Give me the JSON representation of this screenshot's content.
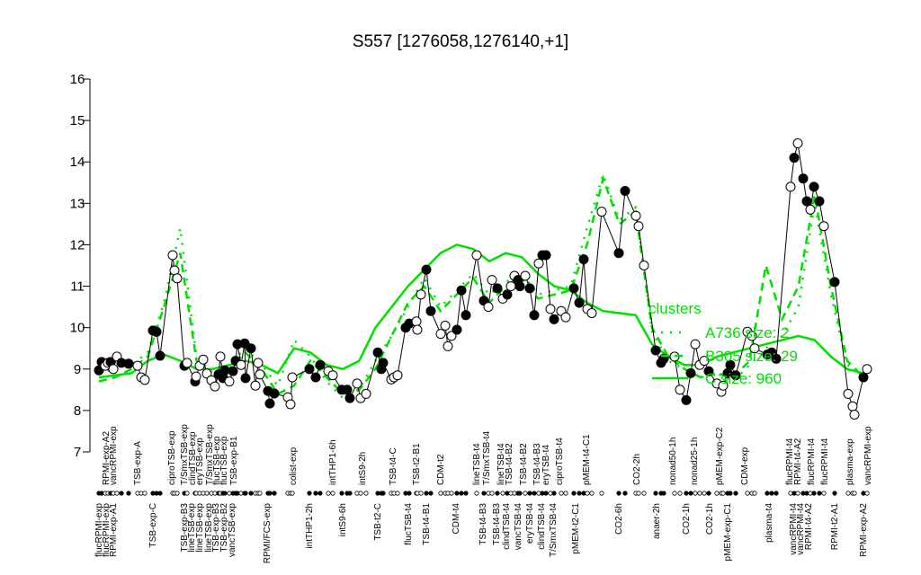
{
  "chart_data": {
    "type": "line",
    "title": "S557 [1276058,1276140,+1]",
    "xlabel": "",
    "ylabel": "",
    "ylim": [
      7,
      16
    ],
    "y_ticks": [
      "7",
      "8",
      "9",
      "10",
      "11",
      "12",
      "13",
      "14",
      "15",
      "16"
    ],
    "grid": false,
    "legend_placement": "right",
    "legend": {
      "title": "clusters",
      "entries": [
        "A736 size: 2",
        "B305 size: 29",
        "C size: 960"
      ]
    },
    "colors": {
      "points": "#000000",
      "clusters": "#00e000"
    },
    "x_labels_top": [
      "RPMI-exp-A2",
      "vancRPMI-exp",
      "TSB-exp-A",
      "ciproTSB-exp",
      "T/SmxTSB-exp",
      "clindTSB-exp",
      "eryTSB-exp",
      "T/SmxTSB-exp",
      "flucTSB-exp",
      "flucTSB-exp",
      "TSB-exp-B1",
      "colist-exp",
      "intTHP1-6h",
      "intS9-2h",
      "TSB-t4-C",
      "TSB-t2-B1",
      "CDM-t2",
      "lineTSB-t4",
      "T/SmxTSB-t4",
      "lineTSB-t4",
      "TSB-t4-B2",
      "TSB-t4-B2",
      "TSB-t4-B3",
      "eryTSB-t4",
      "ciproTSB-t4",
      "pMEM-t4-C1",
      "CO2-2h",
      "nonad50-1h",
      "nonad25-1h",
      "pMEM-exp-C2",
      "CDM-exp",
      "flucRPMI-t4",
      "RPMI-t4-A2",
      "flucRPMI-t4",
      "flucRPMI-t4",
      "plasma-exp",
      "vancRPMI-exp"
    ],
    "x_labels_bottom": [
      "flucRPMI-exp",
      "flucRPMI-exp",
      "RPMI-exp-A1",
      "TSB-exp-C",
      "TSB-exp-B3",
      "lineTSB-exp",
      "lineTSB-exp",
      "lineTSB-exp",
      "TSB-exp-B3",
      "TSB-exp-B2",
      "vancTSB-exp",
      "RPMI/FCS-exp",
      "intTHP1-2h",
      "intS9-6h",
      "TSB-t2-C",
      "flucTSB-t4",
      "TSB-t4-B1",
      "CDM-t4",
      "TSB-t4-B3",
      "TSB-t4-B3",
      "clindTSB-t4",
      "vancTSB-t4",
      "eryTSB-t4",
      "clindTSB-t4",
      "T/SmxTSB-t4",
      "pMEM-t2-C1",
      "CO2-6h",
      "anaer-2h",
      "CO2-1h",
      "CO2-1h",
      "pMEM-exp-C1",
      "plasma-t4",
      "vancRPMI-t4",
      "vancRPMI-t4",
      "RPMI-t4-A2",
      "RPMI-t2-A1",
      "RPMI-exp-A2"
    ],
    "points": {
      "values": [
        8.97,
        9.17,
        9.08,
        9.15,
        9.17,
        9.0,
        9.3,
        9.15,
        9.13,
        9.08,
        8.8,
        8.74,
        9.93,
        9.9,
        9.32,
        11.75,
        11.38,
        11.19,
        9.08,
        9.15,
        8.7,
        8.82,
        9.08,
        9.23,
        8.89,
        8.73,
        8.58,
        8.87,
        9.3,
        8.78,
        8.97,
        8.7,
        8.95,
        9.2,
        9.6,
        9.1,
        9.62,
        8.78,
        9.5,
        8.6,
        9.15,
        8.87,
        8.47,
        8.17,
        8.41,
        8.32,
        8.15,
        8.8,
        9.0,
        8.8,
        9.1,
        8.95,
        8.85,
        8.5,
        8.5,
        8.3,
        8.65,
        8.3,
        8.4,
        9.4,
        9.0,
        9.15,
        8.75,
        8.8,
        8.85,
        10.0,
        10.1,
        10.15,
        9.95,
        10.8,
        11.4,
        10.4,
        9.85,
        10.05,
        9.55,
        9.8,
        9.95,
        10.9,
        10.3,
        11.75,
        10.65,
        10.5,
        11.15,
        10.95,
        10.7,
        10.8,
        11.0,
        11.25,
        11.15,
        11.0,
        11.25,
        10.95,
        10.3,
        11.55,
        11.75,
        11.75,
        10.45,
        10.2,
        10.4,
        10.25,
        10.95,
        10.6,
        11.65,
        10.45,
        10.35,
        12.8,
        11.8,
        13.3,
        12.7,
        12.45,
        11.5,
        9.45,
        9.15,
        9.25,
        9.3,
        8.5,
        8.25,
        8.9,
        9.6,
        9.1,
        9.2,
        8.95,
        8.65,
        8.45,
        8.6,
        8.9,
        9.1,
        8.85,
        9.9,
        9.8,
        9.5,
        9.35,
        9.4,
        9.25,
        13.4,
        14.1,
        14.45,
        13.6,
        13.05,
        12.85,
        13.4,
        13.05,
        12.45,
        11.1,
        8.4,
        8.1,
        7.9,
        8.8,
        9.0
      ],
      "filled": [
        1,
        1,
        0,
        0,
        1,
        0,
        0,
        1,
        1,
        0,
        0,
        0,
        1,
        1,
        1,
        0,
        0,
        0,
        1,
        0,
        1,
        0,
        0,
        0,
        0,
        0,
        0,
        1,
        0,
        1,
        1,
        0,
        1,
        1,
        1,
        0,
        1,
        1,
        1,
        0,
        0,
        0,
        1,
        1,
        1,
        0,
        0,
        0,
        1,
        1,
        1,
        0,
        0,
        1,
        1,
        1,
        0,
        0,
        0,
        1,
        1,
        1,
        0,
        0,
        0,
        1,
        1,
        0,
        0,
        0,
        1,
        1,
        0,
        0,
        0,
        0,
        1,
        1,
        1,
        0,
        1,
        0,
        0,
        1,
        0,
        1,
        0,
        0,
        1,
        1,
        0,
        1,
        1,
        0,
        1,
        1,
        0,
        1,
        0,
        0,
        1,
        1,
        1,
        0,
        0,
        0,
        1,
        1,
        0,
        0,
        0,
        1,
        1,
        1,
        0,
        0,
        1,
        1,
        0,
        0,
        0,
        1,
        0,
        0,
        0,
        1,
        1,
        1,
        0,
        0,
        0,
        1,
        1,
        1,
        0,
        1,
        0,
        1,
        1,
        0,
        1,
        1,
        0,
        1,
        0,
        0,
        0,
        1,
        0
      ]
    },
    "series": [
      {
        "name": "A736 size: 2",
        "style": "dotted",
        "values": [
          8.9,
          9.0,
          9.1,
          9.4,
          10.6,
          12.4,
          9.3,
          8.9,
          9.1,
          9.5,
          9.1,
          8.6,
          9.7,
          9.3,
          8.7,
          8.3,
          8.5,
          9.2,
          9.8,
          10.5,
          11.2,
          10.5,
          10.9,
          11.3,
          10.8,
          11.1,
          11.3,
          10.8,
          10.9,
          11.0,
          12.4,
          13.7,
          12.6,
          12.9,
          9.9,
          9.2,
          9.0,
          8.8,
          8.9,
          8.7,
          9.1,
          9.5,
          9.8,
          10.5,
          13.0,
          10.8,
          9.1,
          8.9
        ]
      },
      {
        "name": "B305 size: 29",
        "style": "dashed",
        "values": [
          8.7,
          8.8,
          9.0,
          9.3,
          10.5,
          11.8,
          9.2,
          8.8,
          9.0,
          9.4,
          9.0,
          8.4,
          8.6,
          9.2,
          8.8,
          8.4,
          8.5,
          9.0,
          9.8,
          10.6,
          11.0,
          10.4,
          10.8,
          11.2,
          10.6,
          11.0,
          11.2,
          10.7,
          10.8,
          10.9,
          12.0,
          13.6,
          12.5,
          12.8,
          10.0,
          9.3,
          9.0,
          8.8,
          8.9,
          8.8,
          9.2,
          11.5,
          10.2,
          11.0,
          13.2,
          11.0,
          9.2,
          8.8
        ]
      },
      {
        "name": "C size: 960",
        "style": "solid",
        "values": [
          8.8,
          8.85,
          8.9,
          9.2,
          9.35,
          9.2,
          9.0,
          9.0,
          9.1,
          9.2,
          9.1,
          8.9,
          9.5,
          9.4,
          9.1,
          9.0,
          9.2,
          10.0,
          10.5,
          11.0,
          11.4,
          11.8,
          12.0,
          11.9,
          11.6,
          11.8,
          11.7,
          11.3,
          11.0,
          10.9,
          10.6,
          10.4,
          10.35,
          10.3,
          9.6,
          9.3,
          9.1,
          9.1,
          9.3,
          9.4,
          9.5,
          9.6,
          9.7,
          9.8,
          9.7,
          9.3,
          9.0,
          8.9
        ]
      }
    ]
  }
}
